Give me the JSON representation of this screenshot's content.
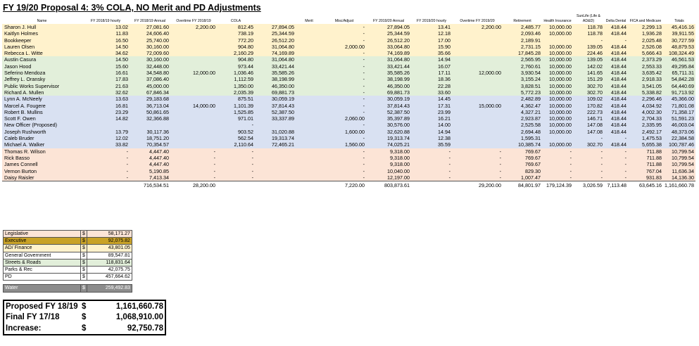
{
  "title": "FY 19/20 Proposal 4:  3% COLA, NO Merit and PD Adjustments",
  "columns": [
    "Name",
    "FY 2018/19 hourly",
    "FY 2018/19 Annual",
    "Overtime FY 2018/19",
    "COLA",
    "",
    "Merit",
    "Misc/Adjust",
    "FY 2019/20 Annual",
    "FY 2019/20 hourly",
    "Overtime FY 2019/20",
    "Retirement",
    "Health Insurance",
    "SunLife (Life & AD&D)",
    "Delta Dental",
    "FICA and Medicare",
    "Totals"
  ],
  "rows": [
    {
      "group": "yellow",
      "cells": [
        "Sharon J. Hull",
        "13.02",
        "27,081.60",
        "2,200.00",
        "812.45",
        "27,894.05",
        "",
        "-",
        "27,894.05",
        "13.41",
        "2,200.00",
        "2,485.77",
        "10,000.00",
        "118.78",
        "418.44",
        "2,299.13",
        "45,416.16"
      ]
    },
    {
      "group": "yellow",
      "cells": [
        "Kaitlyn Holmes",
        "11.83",
        "24,606.40",
        "",
        "738.19",
        "25,344.59",
        "",
        "-",
        "25,344.59",
        "12.18",
        "",
        "2,093.46",
        "10,000.00",
        "118.78",
        "418.44",
        "1,936.28",
        "39,911.55"
      ]
    },
    {
      "group": "yellow",
      "cells": [
        "Bookkeeper",
        "16.50",
        "25,740.00",
        "",
        "772.20",
        "26,512.20",
        "",
        "-",
        "26,512.20",
        "17.00",
        "",
        "2,189.91",
        "",
        "-",
        "-",
        "2,025.48",
        "30,727.59"
      ]
    },
    {
      "group": "yellow",
      "cells": [
        "Lauren Olsen",
        "14.50",
        "30,160.00",
        "",
        "904.80",
        "31,064.80",
        "",
        "2,000.00",
        "33,064.80",
        "15.90",
        "",
        "2,731.15",
        "10,000.00",
        "139.05",
        "418.44",
        "2,526.08",
        "48,879.53"
      ]
    },
    {
      "group": "yellow",
      "cells": [
        "Rebecca L. Witte",
        "34.62",
        "72,009.60",
        "",
        "2,160.29",
        "74,169.89",
        "",
        "-",
        "74,169.89",
        "35.66",
        "",
        "17,845.28",
        "10,000.00",
        "224.46",
        "418.44",
        "5,666.43",
        "108,324.49"
      ]
    },
    {
      "group": "green",
      "cells": [
        "Austin Casura",
        "14.50",
        "30,160.00",
        "",
        "904.80",
        "31,064.80",
        "",
        "-",
        "31,064.80",
        "14.94",
        "",
        "2,565.95",
        "10,000.00",
        "139.05",
        "418.44",
        "2,373.29",
        "46,561.53"
      ]
    },
    {
      "group": "green",
      "cells": [
        "Jason Hood",
        "15.60",
        "32,448.00",
        "",
        "973.44",
        "33,421.44",
        "",
        "-",
        "33,421.44",
        "16.07",
        "",
        "2,760.61",
        "10,000.00",
        "142.02",
        "418.44",
        "2,553.33",
        "49,295.84"
      ]
    },
    {
      "group": "green",
      "cells": [
        "Seferino Mendoza",
        "16.61",
        "34,548.80",
        "12,000.00",
        "1,036.46",
        "35,585.26",
        "",
        "-",
        "35,585.26",
        "17.11",
        "12,000.00",
        "3,930.54",
        "10,000.00",
        "141.65",
        "418.44",
        "3,635.42",
        "65,711.31"
      ]
    },
    {
      "group": "green",
      "cells": [
        "Jeffrey L. Oransky",
        "17.83",
        "37,086.40",
        "",
        "1,112.59",
        "38,198.99",
        "",
        "-",
        "38,198.99",
        "18.36",
        "",
        "3,155.24",
        "10,000.00",
        "151.29",
        "418.44",
        "2,918.33",
        "54,842.28"
      ]
    },
    {
      "group": "green",
      "cells": [
        "Public Works Supervisor",
        "21.63",
        "45,000.00",
        "",
        "1,350.00",
        "46,350.00",
        "",
        "-",
        "46,350.00",
        "22.28",
        "",
        "3,828.51",
        "10,000.00",
        "302.70",
        "418.44",
        "3,541.05",
        "64,440.69"
      ]
    },
    {
      "group": "green",
      "cells": [
        "Richard A. Mullen",
        "32.62",
        "67,846.34",
        "",
        "2,035.39",
        "69,881.73",
        "",
        "-",
        "69,881.73",
        "33.60",
        "",
        "5,772.23",
        "10,000.00",
        "302.70",
        "418.44",
        "5,338.82",
        "91,713.92"
      ]
    },
    {
      "group": "blue",
      "cells": [
        "Lynn A. McNeely",
        "13.63",
        "29,183.68",
        "",
        "875.51",
        "30,059.19",
        "",
        "-",
        "30,059.19",
        "14.45",
        "",
        "2,482.89",
        "10,000.00",
        "109.02",
        "418.44",
        "2,296.46",
        "45,366.00"
      ]
    },
    {
      "group": "blue",
      "cells": [
        "Marcel A. Fougere",
        "16.81",
        "36,713.04",
        "14,000.00",
        "1,101.39",
        "37,814.43",
        "",
        "-",
        "37,814.43",
        "17.31",
        "15,000.00",
        "4,362.47",
        "10,000.00",
        "170.82",
        "418.44",
        "4,034.92",
        "71,801.08"
      ]
    },
    {
      "group": "blue",
      "cells": [
        "Robert B. Mullins",
        "23.29",
        "50,861.65",
        "",
        "1,525.85",
        "52,387.50",
        "",
        "-",
        "52,387.50",
        "23.99",
        "",
        "4,327.21",
        "10,000.00",
        "222.73",
        "418.44",
        "4,002.30",
        "71,358.17"
      ]
    },
    {
      "group": "blue",
      "cells": [
        "Scott F. Owen",
        "14.82",
        "32,366.88",
        "",
        "971.01",
        "33,337.89",
        "",
        "2,060.00",
        "35,397.89",
        "16.21",
        "",
        "2,923.87",
        "10,000.00",
        "146.71",
        "418.44",
        "2,704.33",
        "51,591.23"
      ]
    },
    {
      "group": "blue",
      "cells": [
        "New Officer (Proposed)",
        "",
        "",
        "",
        "-",
        "",
        "",
        "-",
        "30,576.00",
        "14.00",
        "",
        "2,525.58",
        "10,000.00",
        "147.08",
        "418.44",
        "2,335.95",
        "46,003.04"
      ]
    },
    {
      "group": "blue",
      "cells": [
        "Joseph Rushworth",
        "13.79",
        "30,117.36",
        "",
        "903.52",
        "31,020.88",
        "",
        "1,600.00",
        "32,620.88",
        "14.94",
        "",
        "2,694.48",
        "10,000.00",
        "147.08",
        "418.44",
        "2,492.17",
        "48,373.06"
      ]
    },
    {
      "group": "blue",
      "cells": [
        "Caleb Bruder",
        "12.02",
        "18,751.20",
        "",
        "562.54",
        "19,313.74",
        "",
        "-",
        "19,313.74",
        "12.38",
        "",
        "1,595.31",
        "",
        "-",
        "-",
        "1,475.53",
        "22,384.58"
      ]
    },
    {
      "group": "blue",
      "cells": [
        "Michael A. Walker",
        "33.82",
        "70,354.57",
        "",
        "2,110.64",
        "72,465.21",
        "",
        "1,560.00",
        "74,025.21",
        "35.59",
        "",
        "10,385.74",
        "10,000.00",
        "302.70",
        "418.44",
        "5,655.38",
        "100,787.46"
      ]
    },
    {
      "group": "orange",
      "cells": [
        "Thomas R. Wilson",
        "-",
        "4,447.40",
        "-",
        "-",
        "",
        "",
        "-",
        "9,318.00",
        "-",
        "-",
        "769.67",
        "-",
        "-",
        "-",
        "711.88",
        "10,799.54"
      ]
    },
    {
      "group": "orange",
      "cells": [
        "Rick Basso",
        "-",
        "4,447.40",
        "-",
        "-",
        "",
        "",
        "-",
        "9,318.00",
        "-",
        "-",
        "769.67",
        "-",
        "-",
        "-",
        "711.88",
        "10,799.54"
      ]
    },
    {
      "group": "orange",
      "cells": [
        "James Connell",
        "-",
        "4,447.40",
        "-",
        "-",
        "",
        "",
        "-",
        "9,318.00",
        "-",
        "-",
        "769.67",
        "-",
        "-",
        "-",
        "711.88",
        "10,799.54"
      ]
    },
    {
      "group": "orange",
      "cells": [
        "Vernon Burton",
        "-",
        "5,190.85",
        "-",
        "-",
        "",
        "",
        "-",
        "10,040.00",
        "-",
        "-",
        "829.30",
        "-",
        "-",
        "-",
        "767.04",
        "11,636.34"
      ]
    },
    {
      "group": "orange",
      "cells": [
        "Daisy Raisler",
        "-",
        "7,413.34",
        "-",
        "-",
        "",
        "",
        "-",
        "12,197.00",
        "-",
        "-",
        "1,007.47",
        "-",
        "-",
        "-",
        "931.83",
        "14,136.30"
      ]
    }
  ],
  "totals": [
    "",
    "",
    "716,534.51",
    "28,200.00",
    "",
    "",
    "",
    "7,220.00",
    "803,873.61",
    "",
    "29,200.00",
    "84,801.97",
    "179,124.39",
    "3,026.59",
    "7,113.48",
    "63,645.16",
    "1,161,660.78"
  ],
  "summary": [
    {
      "label": "Legislative",
      "currency": "$",
      "amount": "58,171.27",
      "bg": "#fce4d6"
    },
    {
      "label": "Executive",
      "currency": "$",
      "amount": "92,075.82",
      "bg": "#c9a227"
    },
    {
      "label": "AD/ Finance",
      "currency": "$",
      "amount": "43,801.05",
      "bg": "#fff2cc"
    },
    {
      "label": "General Government",
      "currency": "$",
      "amount": "89,547.81",
      "bg": "#ffffff"
    },
    {
      "label": "Streets & Roads",
      "currency": "$",
      "amount": "118,831.64",
      "bg": "#e2efda"
    },
    {
      "label": "Parks & Rec",
      "currency": "$",
      "amount": "42,075.75",
      "bg": "#ffffff"
    },
    {
      "label": "PD",
      "currency": "$",
      "amount": "457,664.62",
      "bg": "#ffffff"
    }
  ],
  "water": {
    "label": "Water",
    "currency": "$",
    "amount": "259,492.83",
    "bg": "#8c8c8c"
  },
  "big_totals": [
    {
      "label": "Proposed FY 18/19",
      "currency": "$",
      "amount": "1,161,660.78"
    },
    {
      "label": "Final FY 17/18",
      "currency": "$",
      "amount": "1,068,910.00"
    },
    {
      "label": "Increase:",
      "currency": "$",
      "amount": "92,750.78"
    }
  ]
}
